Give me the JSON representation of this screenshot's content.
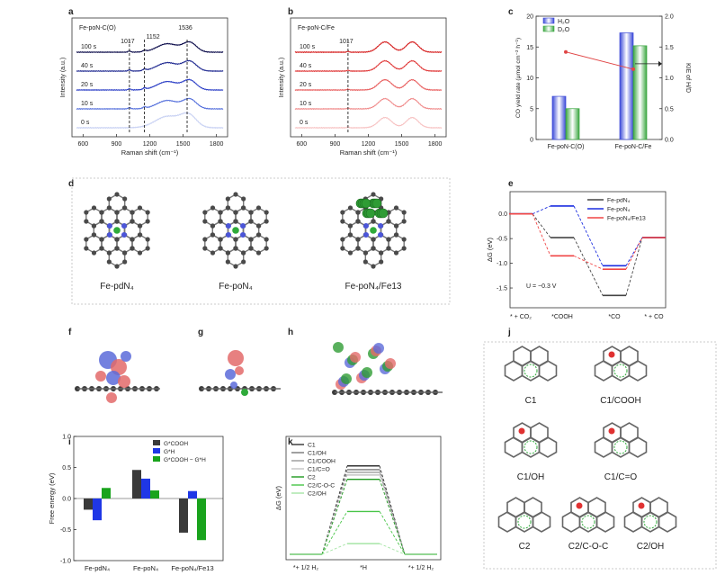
{
  "panel_letters": [
    "a",
    "b",
    "c",
    "d",
    "e",
    "f",
    "g",
    "h",
    "i",
    "j",
    "k"
  ],
  "chart_data": [
    {
      "id": "a",
      "type": "line",
      "title": "Fe-poN-C(O)",
      "xlabel": "Raman shift (cm⁻¹)",
      "ylabel": "Intensity (a.u.)",
      "xlim": [
        500,
        1900
      ],
      "xticks": [
        600,
        900,
        1200,
        1500,
        1800
      ],
      "series_labels": [
        "100 s",
        "40 s",
        "20 s",
        "10 s",
        "0 s"
      ],
      "series_colors": [
        "#0b0b4a",
        "#1e2890",
        "#2c3fc6",
        "#5570dc",
        "#c9d2f3"
      ],
      "peak_markers": [
        {
          "x": 1017,
          "label": "1017"
        },
        {
          "x": 1152,
          "label": "1152"
        },
        {
          "x": 1536,
          "label": "1536"
        }
      ]
    },
    {
      "id": "b",
      "type": "line",
      "title": "Fe-poN-C/Fe",
      "xlabel": "Raman shift (cm⁻¹)",
      "ylabel": "Intensity (a.u.)",
      "xlim": [
        500,
        1900
      ],
      "xticks": [
        600,
        900,
        1200,
        1500,
        1800
      ],
      "series_labels": [
        "100 s",
        "40 s",
        "20 s",
        "10 s",
        "0 s"
      ],
      "series_colors": [
        "#d62020",
        "#e03a3a",
        "#e86060",
        "#f08c8c",
        "#f7c3c3"
      ],
      "peak_markers": [
        {
          "x": 1017,
          "label": "1017"
        }
      ]
    },
    {
      "id": "c",
      "type": "bar",
      "categories": [
        "Fe-poN-C(O)",
        "Fe-poN-C/Fe"
      ],
      "series": [
        {
          "name": "H₂O",
          "values": [
            7.0,
            17.3
          ],
          "color": "#3b49d8"
        },
        {
          "name": "D₂O",
          "values": [
            5.0,
            15.2
          ],
          "color": "#3aa640"
        }
      ],
      "secondary": {
        "name": "KIE of H/D",
        "values": [
          1.42,
          1.14
        ],
        "color": "#e04545"
      },
      "ylabel": "CO yield rate (μmol cm⁻² h⁻¹)",
      "y2label": "KIE of H/D",
      "ylim": [
        0,
        20
      ],
      "yticks": [
        0,
        5,
        10,
        15,
        20
      ],
      "y2lim": [
        0,
        2.0
      ],
      "y2ticks": [
        "0.0",
        "0.5",
        "1.0",
        "1.5",
        "2.0"
      ]
    },
    {
      "id": "e",
      "type": "line",
      "ylabel": "ΔG (eV)",
      "ylim": [
        -1.9,
        0.45
      ],
      "yticks": [
        "0.0",
        "-0.5",
        "-1.0",
        "-1.5"
      ],
      "categories": [
        "* + CO₂",
        "*COOH",
        "*CO",
        "* + CO"
      ],
      "annotation": "U = −0.3 V",
      "series": [
        {
          "name": "Fe-pdN₄",
          "values": [
            0.0,
            -0.48,
            -1.65,
            -0.48
          ],
          "color": "#444444"
        },
        {
          "name": "Fe-poN₄",
          "values": [
            0.0,
            0.16,
            -1.05,
            -0.48
          ],
          "color": "#1c2ee0"
        },
        {
          "name": "Fe-poN₄/Fe13",
          "values": [
            0.0,
            -0.85,
            -1.12,
            -0.48
          ],
          "color": "#f04545"
        }
      ]
    },
    {
      "id": "i",
      "type": "bar",
      "ylabel": "Free energy (eV)",
      "ylim": [
        -1.0,
        1.0
      ],
      "yticks": [
        "1.0",
        "0.5",
        "0.0",
        "-0.5",
        "-1.0"
      ],
      "categories": [
        "Fe-pdN₄",
        "Fe-poN₄",
        "Fe-poN₄/Fe13"
      ],
      "series": [
        {
          "name": "G*COOH",
          "values": [
            -0.18,
            0.46,
            -0.55
          ],
          "color": "#3a3a3a"
        },
        {
          "name": "G*H",
          "values": [
            -0.35,
            0.32,
            0.12
          ],
          "color": "#1f37e6"
        },
        {
          "name": "G*COOH − G*H",
          "values": [
            0.17,
            0.13,
            -0.67
          ],
          "color": "#19a31c"
        }
      ]
    },
    {
      "id": "k",
      "type": "line",
      "ylabel": "ΔG (eV)",
      "categories": [
        "*+ 1/2 H₂",
        "*H",
        "*+ 1/2 H₂"
      ],
      "ylim": [
        -0.1,
        2.2
      ],
      "series": [
        {
          "name": "C1",
          "value": 1.65,
          "color": "#333333"
        },
        {
          "name": "C1/OH",
          "value": 1.58,
          "color": "#777777"
        },
        {
          "name": "C1/COOH",
          "value": 1.53,
          "color": "#9a9a9a"
        },
        {
          "name": "C1/C=O",
          "value": 1.48,
          "color": "#c4c4c4"
        },
        {
          "name": "C2",
          "value": 1.4,
          "color": "#1e9a1e"
        },
        {
          "name": "C2/C-O-C",
          "value": 0.8,
          "color": "#48c548"
        },
        {
          "name": "C2/OH",
          "value": 0.2,
          "color": "#a6e5a6"
        }
      ]
    }
  ],
  "panel_d": {
    "labels": [
      "Fe-pdN₄",
      "Fe-poN₄",
      "Fe-poN₄/Fe13"
    ]
  },
  "panel_j": {
    "labels": [
      "C1",
      "C1/COOH",
      "C1/OH",
      "C1/C=O",
      "C2",
      "C2/C-O-C",
      "C2/OH"
    ]
  }
}
